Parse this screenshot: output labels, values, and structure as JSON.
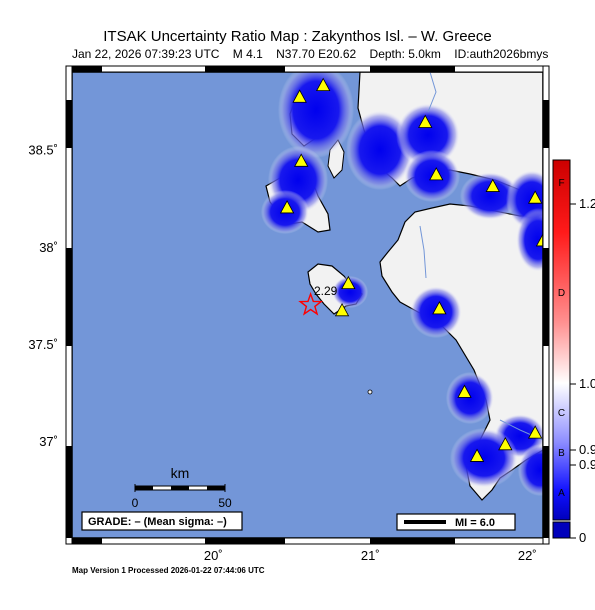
{
  "header": {
    "title": "ITSAK Uncertainty Ratio Map : Zakynthos Isl. – W. Greece",
    "date": "Jan 22, 2026 07:39:23 UTC",
    "magnitude": "M 4.1",
    "location": "N37.70 E20.62",
    "depth": "Depth: 5.0km",
    "event_id": "ID:auth2026bmys"
  },
  "axes": {
    "lat_ticks": [
      "38.5",
      "38",
      "37.5",
      "37"
    ],
    "lat_values": [
      38.5,
      38.0,
      37.5,
      37.0
    ],
    "lon_ticks": [
      "20",
      "21",
      "22"
    ],
    "lon_values": [
      20,
      21,
      22
    ],
    "lon_range": [
      19.1,
      22.1
    ],
    "lat_range": [
      36.5,
      38.9
    ]
  },
  "scalebar": {
    "unit": "km",
    "start": "0",
    "end": "50"
  },
  "grade_box": "GRADE: – (Mean sigma: –)",
  "mi_legend": "MI = 6.0",
  "station_label": "2.29",
  "epicenter": {
    "lon": 20.62,
    "lat": 37.7
  },
  "stations": [
    {
      "lon": 20.7,
      "lat": 38.83
    },
    {
      "lon": 20.55,
      "lat": 38.77
    },
    {
      "lon": 20.56,
      "lat": 38.44
    },
    {
      "lon": 20.47,
      "lat": 38.2
    },
    {
      "lon": 21.35,
      "lat": 38.64
    },
    {
      "lon": 21.42,
      "lat": 38.37
    },
    {
      "lon": 21.78,
      "lat": 38.31
    },
    {
      "lon": 22.05,
      "lat": 38.25
    },
    {
      "lon": 22.1,
      "lat": 38.03
    },
    {
      "lon": 20.86,
      "lat": 37.81
    },
    {
      "lon": 20.82,
      "lat": 37.67
    },
    {
      "lon": 21.44,
      "lat": 37.68
    },
    {
      "lon": 21.6,
      "lat": 37.25
    },
    {
      "lon": 22.05,
      "lat": 37.04
    },
    {
      "lon": 21.86,
      "lat": 36.98
    },
    {
      "lon": 21.68,
      "lat": 36.92
    }
  ],
  "colorbar": {
    "letters": [
      "F",
      "D",
      "C",
      "B",
      "A"
    ],
    "values": [
      "1.2",
      "1.0",
      "0.9",
      "0.9",
      "0"
    ],
    "colors": [
      "#cc0000",
      "#ff0000",
      "#ff8080",
      "#ffffff",
      "#8080ff",
      "#0000ff",
      "#0000aa"
    ]
  },
  "colors": {
    "sea": "#7396d8",
    "land": "#f2f2f2",
    "uncertainty_blue": "#0a0ae6",
    "station": "#ffff00",
    "epicenter": "#ff0000"
  },
  "footer": "Map Version 1 Processed 2026-01-22 07:44:06 UTC"
}
